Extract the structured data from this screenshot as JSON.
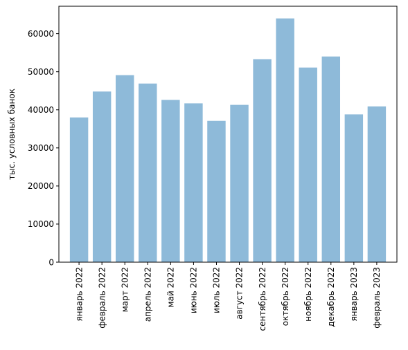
{
  "chart_data": {
    "type": "bar",
    "title": "",
    "xlabel": "",
    "ylabel": "тыс. условных банок",
    "categories": [
      "январь 2022",
      "февраль 2022",
      "март 2022",
      "апрель 2022",
      "май 2022",
      "июнь 2022",
      "июль 2022",
      "август 2022",
      "сентябрь 2022",
      "октябрь 2022",
      "ноябрь 2022",
      "декабрь 2022",
      "январь 2023",
      "февраль 2023"
    ],
    "values": [
      38000,
      44800,
      49100,
      46900,
      42600,
      41700,
      37100,
      41300,
      53300,
      64000,
      51100,
      54000,
      38800,
      40900
    ],
    "ylim": [
      0,
      67200
    ],
    "yticks": [
      0,
      10000,
      20000,
      30000,
      40000,
      50000,
      60000
    ],
    "grid": false,
    "bar_color": "#8ebad9"
  }
}
